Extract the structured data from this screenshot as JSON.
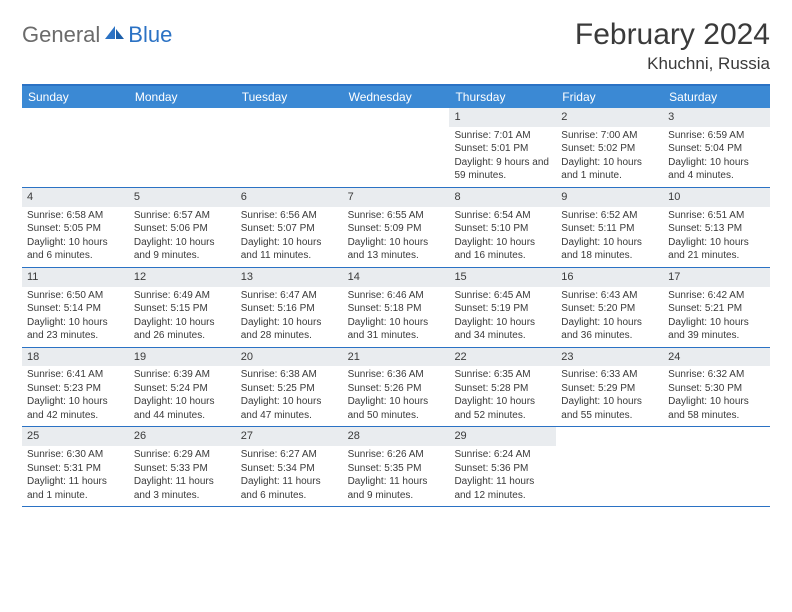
{
  "logo": {
    "general": "General",
    "blue": "Blue"
  },
  "title": "February 2024",
  "location": "Khuchni, Russia",
  "colors": {
    "accent": "#3b89d4",
    "border": "#2b72c4",
    "dayStripe": "#e9ecef",
    "text": "#3a3a3a",
    "logoGray": "#6b6b6b"
  },
  "dayNames": [
    "Sunday",
    "Monday",
    "Tuesday",
    "Wednesday",
    "Thursday",
    "Friday",
    "Saturday"
  ],
  "weeks": [
    [
      null,
      null,
      null,
      null,
      {
        "n": "1",
        "sr": "7:01 AM",
        "ss": "5:01 PM",
        "dl": "9 hours and 59 minutes."
      },
      {
        "n": "2",
        "sr": "7:00 AM",
        "ss": "5:02 PM",
        "dl": "10 hours and 1 minute."
      },
      {
        "n": "3",
        "sr": "6:59 AM",
        "ss": "5:04 PM",
        "dl": "10 hours and 4 minutes."
      }
    ],
    [
      {
        "n": "4",
        "sr": "6:58 AM",
        "ss": "5:05 PM",
        "dl": "10 hours and 6 minutes."
      },
      {
        "n": "5",
        "sr": "6:57 AM",
        "ss": "5:06 PM",
        "dl": "10 hours and 9 minutes."
      },
      {
        "n": "6",
        "sr": "6:56 AM",
        "ss": "5:07 PM",
        "dl": "10 hours and 11 minutes."
      },
      {
        "n": "7",
        "sr": "6:55 AM",
        "ss": "5:09 PM",
        "dl": "10 hours and 13 minutes."
      },
      {
        "n": "8",
        "sr": "6:54 AM",
        "ss": "5:10 PM",
        "dl": "10 hours and 16 minutes."
      },
      {
        "n": "9",
        "sr": "6:52 AM",
        "ss": "5:11 PM",
        "dl": "10 hours and 18 minutes."
      },
      {
        "n": "10",
        "sr": "6:51 AM",
        "ss": "5:13 PM",
        "dl": "10 hours and 21 minutes."
      }
    ],
    [
      {
        "n": "11",
        "sr": "6:50 AM",
        "ss": "5:14 PM",
        "dl": "10 hours and 23 minutes."
      },
      {
        "n": "12",
        "sr": "6:49 AM",
        "ss": "5:15 PM",
        "dl": "10 hours and 26 minutes."
      },
      {
        "n": "13",
        "sr": "6:47 AM",
        "ss": "5:16 PM",
        "dl": "10 hours and 28 minutes."
      },
      {
        "n": "14",
        "sr": "6:46 AM",
        "ss": "5:18 PM",
        "dl": "10 hours and 31 minutes."
      },
      {
        "n": "15",
        "sr": "6:45 AM",
        "ss": "5:19 PM",
        "dl": "10 hours and 34 minutes."
      },
      {
        "n": "16",
        "sr": "6:43 AM",
        "ss": "5:20 PM",
        "dl": "10 hours and 36 minutes."
      },
      {
        "n": "17",
        "sr": "6:42 AM",
        "ss": "5:21 PM",
        "dl": "10 hours and 39 minutes."
      }
    ],
    [
      {
        "n": "18",
        "sr": "6:41 AM",
        "ss": "5:23 PM",
        "dl": "10 hours and 42 minutes."
      },
      {
        "n": "19",
        "sr": "6:39 AM",
        "ss": "5:24 PM",
        "dl": "10 hours and 44 minutes."
      },
      {
        "n": "20",
        "sr": "6:38 AM",
        "ss": "5:25 PM",
        "dl": "10 hours and 47 minutes."
      },
      {
        "n": "21",
        "sr": "6:36 AM",
        "ss": "5:26 PM",
        "dl": "10 hours and 50 minutes."
      },
      {
        "n": "22",
        "sr": "6:35 AM",
        "ss": "5:28 PM",
        "dl": "10 hours and 52 minutes."
      },
      {
        "n": "23",
        "sr": "6:33 AM",
        "ss": "5:29 PM",
        "dl": "10 hours and 55 minutes."
      },
      {
        "n": "24",
        "sr": "6:32 AM",
        "ss": "5:30 PM",
        "dl": "10 hours and 58 minutes."
      }
    ],
    [
      {
        "n": "25",
        "sr": "6:30 AM",
        "ss": "5:31 PM",
        "dl": "11 hours and 1 minute."
      },
      {
        "n": "26",
        "sr": "6:29 AM",
        "ss": "5:33 PM",
        "dl": "11 hours and 3 minutes."
      },
      {
        "n": "27",
        "sr": "6:27 AM",
        "ss": "5:34 PM",
        "dl": "11 hours and 6 minutes."
      },
      {
        "n": "28",
        "sr": "6:26 AM",
        "ss": "5:35 PM",
        "dl": "11 hours and 9 minutes."
      },
      {
        "n": "29",
        "sr": "6:24 AM",
        "ss": "5:36 PM",
        "dl": "11 hours and 12 minutes."
      },
      null,
      null
    ]
  ],
  "labels": {
    "sunrise": "Sunrise: ",
    "sunset": "Sunset: ",
    "daylight": "Daylight: "
  }
}
